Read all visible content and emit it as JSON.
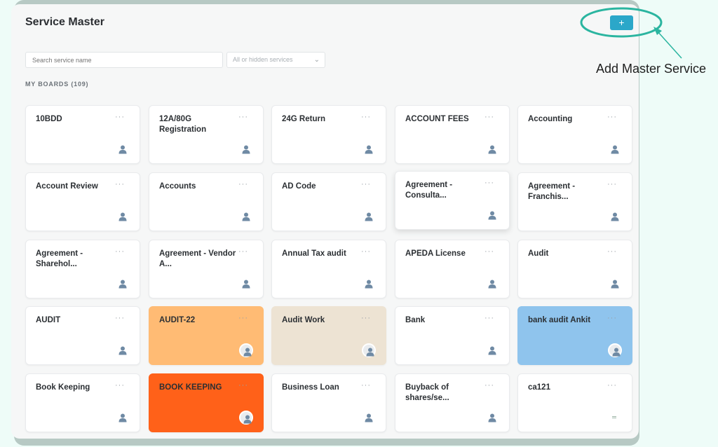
{
  "page": {
    "title": "Service Master",
    "add_button": "+"
  },
  "search": {
    "placeholder": "Search service name"
  },
  "filter": {
    "value": "All or hidden services",
    "icon": "chevron-down-icon"
  },
  "boards": {
    "label": "MY BOARDS (109)"
  },
  "cards": [
    {
      "name": "10BDD",
      "menu": "···"
    },
    {
      "name": "12A/80G Registration",
      "menu": "···"
    },
    {
      "name": "24G Return",
      "menu": "···"
    },
    {
      "name": "ACCOUNT FEES",
      "menu": "···"
    },
    {
      "name": "Accounting",
      "menu": "···"
    },
    {
      "name": "Account Review",
      "menu": "···"
    },
    {
      "name": "Accounts",
      "menu": "···"
    },
    {
      "name": "AD Code",
      "menu": "···"
    },
    {
      "name": "Agreement - Consulta...",
      "menu": "···"
    },
    {
      "name": "Agreement - Franchis...",
      "menu": "···"
    },
    {
      "name": "Agreement - Sharehol...",
      "menu": "···"
    },
    {
      "name": "Agreement - Vendor A...",
      "menu": "···"
    },
    {
      "name": "Annual Tax audit",
      "menu": "···"
    },
    {
      "name": "APEDA License",
      "menu": "···"
    },
    {
      "name": "Audit",
      "menu": "···"
    },
    {
      "name": "AUDIT",
      "menu": "···"
    },
    {
      "name": "AUDIT-22",
      "menu": "···",
      "color": "#ffbb74"
    },
    {
      "name": "Audit Work",
      "menu": "···",
      "color": "#ede3d3"
    },
    {
      "name": "Bank",
      "menu": "···"
    },
    {
      "name": "bank audit Ankit",
      "menu": "···",
      "color": "#8fc4ed"
    },
    {
      "name": "Book Keeping",
      "menu": "···"
    },
    {
      "name": "BOOK KEEPING",
      "menu": "···",
      "color": "#ff6119"
    },
    {
      "name": "Business Loan",
      "menu": "···"
    },
    {
      "name": "Buyback of shares/se...",
      "menu": "···"
    },
    {
      "name": "ca121",
      "menu": "···"
    }
  ],
  "annotation": {
    "text": "Add Master Service",
    "color": "#2bb5a0"
  },
  "colors": {
    "accent": "#2ba7c9",
    "avatar": "#6f8aa4"
  }
}
